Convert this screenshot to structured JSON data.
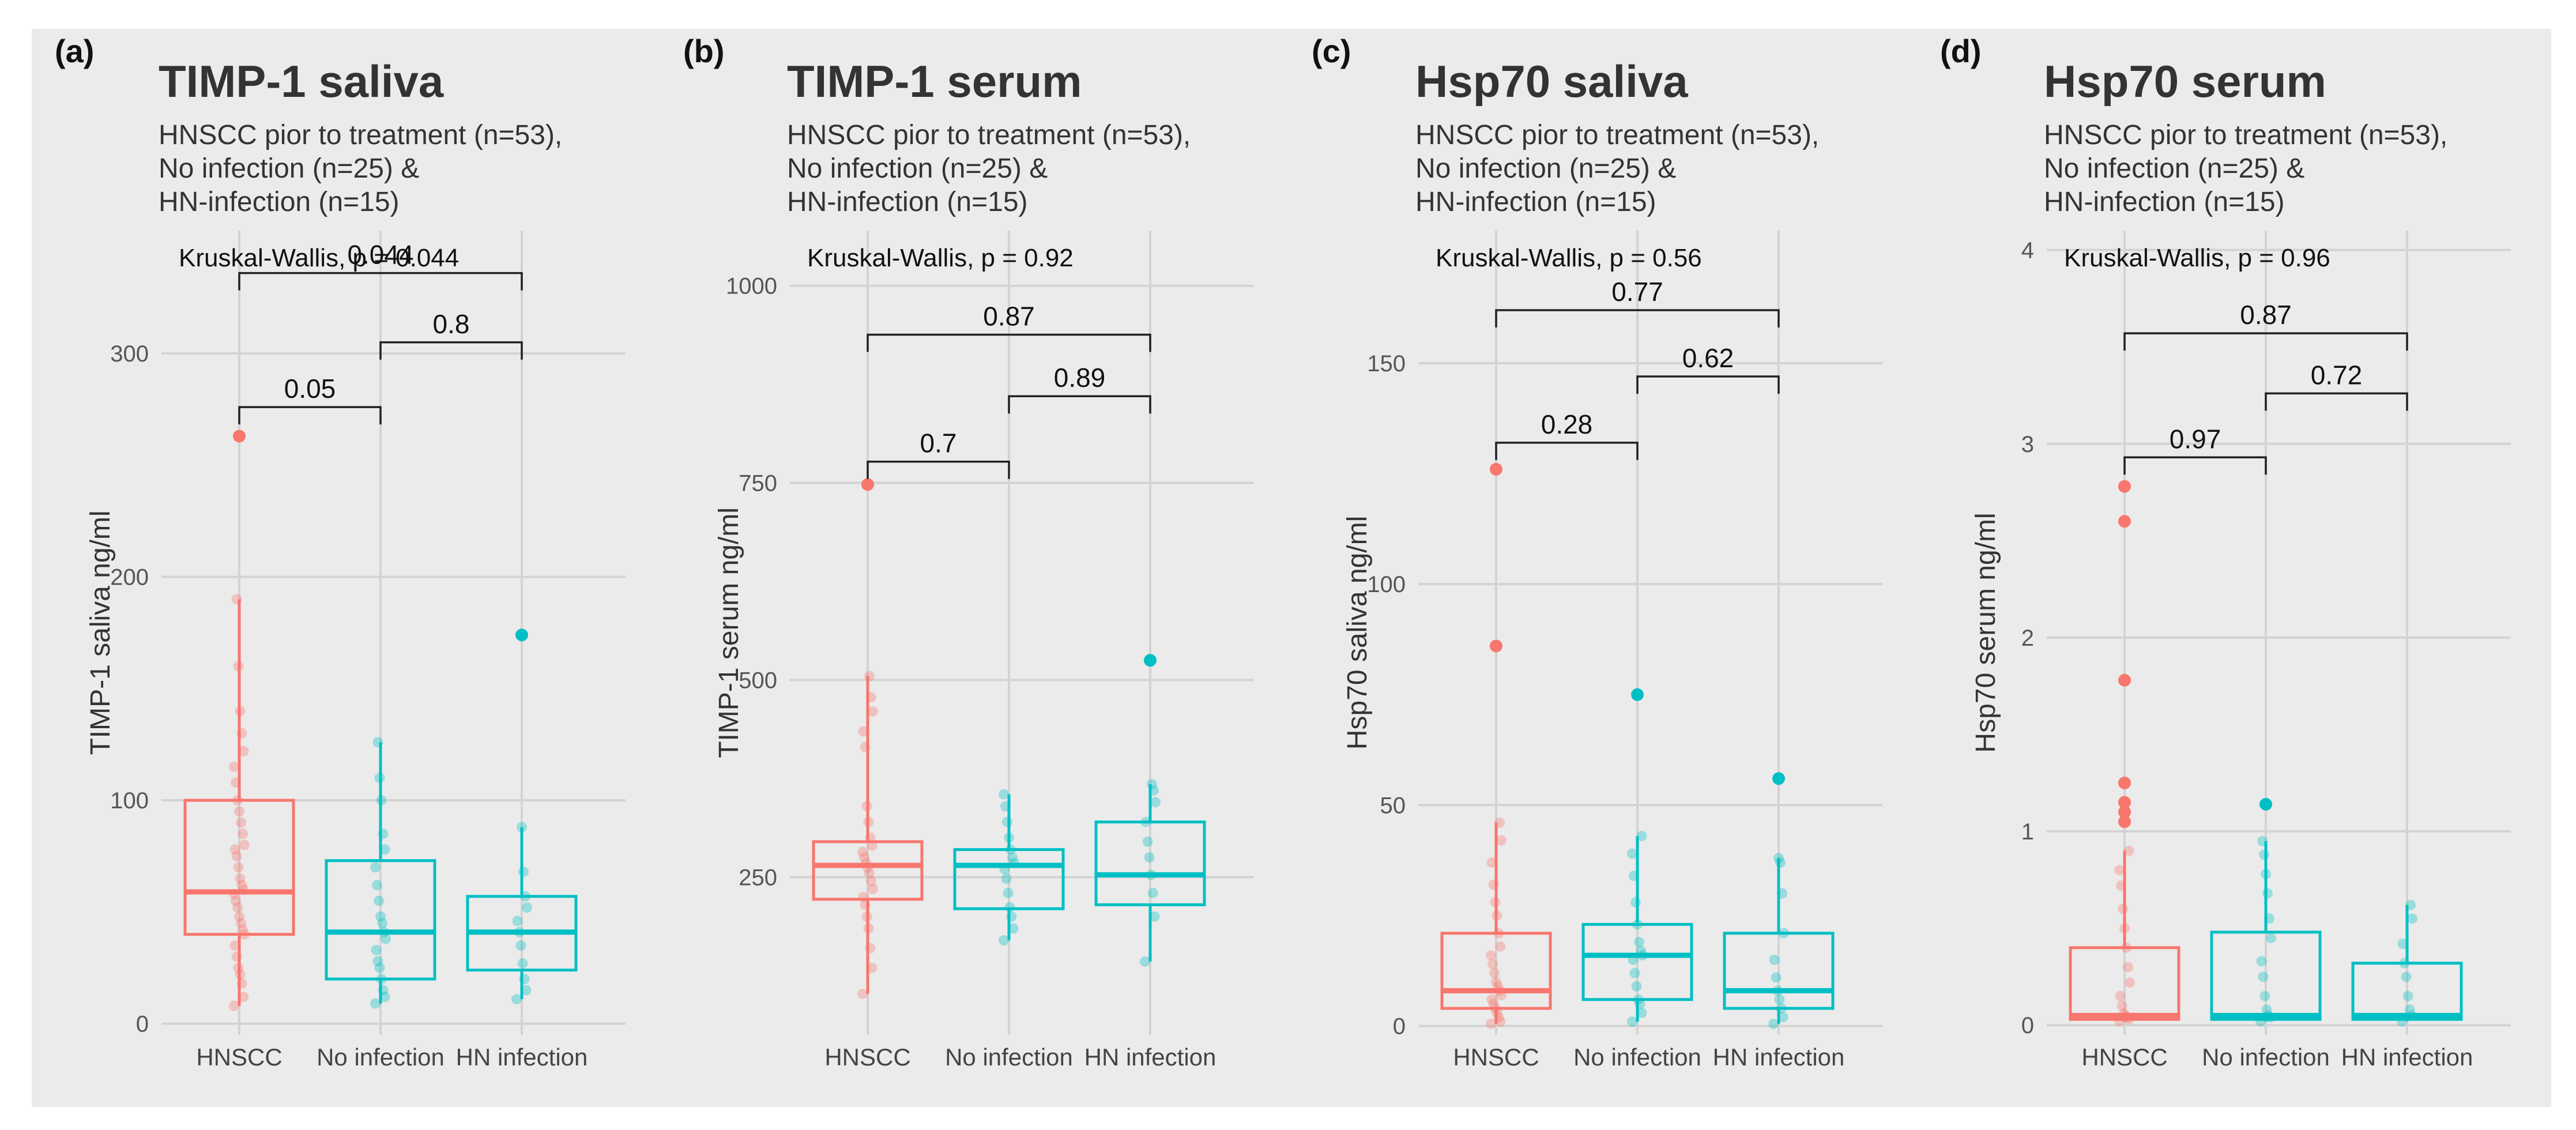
{
  "figure": {
    "palette": {
      "hnscc": "#F8766D",
      "control": "#00BFC4",
      "panel_bg": "#EBEBEB",
      "grid": "#D3D3D3"
    }
  },
  "chart_data": [
    {
      "type": "box",
      "panel_label": "(a)",
      "title": "TIMP-1 saliva",
      "subtitle_lines": [
        "HNSCC pior to treatment (n=53),",
        "No infection (n=25) &",
        "HN-infection (n=15)"
      ],
      "kruskal": "Kruskal-Wallis, p = 0.044",
      "ylabel": "TIMP-1 saliva ng/ml",
      "ylim": [
        -5,
        355
      ],
      "yticks": [
        0,
        100,
        200,
        300
      ],
      "categories": [
        "HNSCC",
        "No infection",
        "HN infection"
      ],
      "series": [
        {
          "name": "HNSCC",
          "color": "#F8766D",
          "q1": 40,
          "median": 59,
          "q3": 100,
          "whisker_low": 8,
          "whisker_high": 190,
          "outliers": [
            263
          ],
          "points": [
            8,
            12,
            18,
            22,
            25,
            30,
            35,
            40,
            42,
            45,
            48,
            52,
            55,
            58,
            60,
            62,
            65,
            70,
            75,
            78,
            80,
            85,
            90,
            95,
            100,
            108,
            115,
            122,
            130,
            140,
            160,
            190
          ]
        },
        {
          "name": "No infection",
          "color": "#00BFC4",
          "q1": 20,
          "median": 41,
          "q3": 73,
          "whisker_low": 9,
          "whisker_high": 126,
          "outliers": [],
          "points": [
            9,
            12,
            15,
            20,
            25,
            28,
            33,
            38,
            41,
            45,
            48,
            55,
            62,
            70,
            78,
            85,
            100,
            110,
            126
          ]
        },
        {
          "name": "HN infection",
          "color": "#00BFC4",
          "q1": 24,
          "median": 41,
          "q3": 57,
          "whisker_low": 11,
          "whisker_high": 88,
          "outliers": [
            174
          ],
          "points": [
            11,
            15,
            20,
            27,
            35,
            41,
            46,
            52,
            57,
            68,
            88
          ]
        }
      ],
      "comparisons": [
        {
          "from": 0,
          "to": 1,
          "label": "0.05",
          "y": 276
        },
        {
          "from": 1,
          "to": 2,
          "label": "0.8",
          "y": 305
        },
        {
          "from": 0,
          "to": 2,
          "label": "0.044",
          "y": 336
        }
      ]
    },
    {
      "type": "box",
      "panel_label": "(b)",
      "title": "TIMP-1 serum",
      "subtitle_lines": [
        "HNSCC pior to treatment (n=53),",
        "No infection (n=25) &",
        "HN-infection (n=15)"
      ],
      "kruskal": "Kruskal-Wallis, p = 0.92",
      "ylabel": "TIMP-1 serum ng/ml",
      "ylim": [
        50,
        1070
      ],
      "yticks": [
        250,
        500,
        750,
        1000
      ],
      "categories": [
        "HNSCC",
        "No infection",
        "HN infection"
      ],
      "series": [
        {
          "name": "HNSCC",
          "color": "#F8766D",
          "q1": 222,
          "median": 265,
          "q3": 295,
          "whisker_low": 102,
          "whisker_high": 505,
          "outliers": [
            748
          ],
          "points": [
            102,
            135,
            160,
            185,
            200,
            215,
            225,
            235,
            245,
            255,
            262,
            268,
            275,
            282,
            290,
            300,
            320,
            340,
            415,
            435,
            460,
            478,
            505
          ]
        },
        {
          "name": "No infection",
          "color": "#00BFC4",
          "q1": 210,
          "median": 265,
          "q3": 285,
          "whisker_low": 170,
          "whisker_high": 355,
          "outliers": [],
          "points": [
            170,
            185,
            200,
            212,
            230,
            248,
            260,
            268,
            275,
            285,
            300,
            320,
            340,
            355
          ]
        },
        {
          "name": "HN infection",
          "color": "#00BFC4",
          "q1": 215,
          "median": 253,
          "q3": 320,
          "whisker_low": 143,
          "whisker_high": 368,
          "outliers": [
            525
          ],
          "points": [
            143,
            200,
            230,
            253,
            275,
            295,
            320,
            345,
            360,
            368
          ]
        }
      ],
      "comparisons": [
        {
          "from": 0,
          "to": 1,
          "label": "0.7",
          "y": 777
        },
        {
          "from": 1,
          "to": 2,
          "label": "0.89",
          "y": 860
        },
        {
          "from": 0,
          "to": 2,
          "label": "0.87",
          "y": 938
        }
      ]
    },
    {
      "type": "box",
      "panel_label": "(c)",
      "title": "Hsp70 saliva",
      "subtitle_lines": [
        "HNSCC pior to treatment (n=53),",
        "No infection (n=25) &",
        "HN-infection (n=15)"
      ],
      "kruskal": "Kruskal-Wallis, p = 0.56",
      "ylabel": "Hsp70 saliva ng/ml",
      "ylim": [
        -2,
        180
      ],
      "yticks": [
        0,
        50,
        100,
        150
      ],
      "categories": [
        "HNSCC",
        "No infection",
        "HN infection"
      ],
      "series": [
        {
          "name": "HNSCC",
          "color": "#F8766D",
          "q1": 4,
          "median": 8,
          "q3": 21,
          "whisker_low": 0.5,
          "whisker_high": 46,
          "outliers": [
            86,
            126
          ],
          "points": [
            0.5,
            1,
            2,
            3,
            4,
            5,
            6,
            7,
            8,
            9,
            10,
            12,
            14,
            16,
            18,
            21,
            25,
            28,
            32,
            37,
            42,
            46
          ]
        },
        {
          "name": "No infection",
          "color": "#00BFC4",
          "q1": 6,
          "median": 16,
          "q3": 23,
          "whisker_low": 1,
          "whisker_high": 43,
          "outliers": [
            75
          ],
          "points": [
            1,
            3,
            5,
            6,
            9,
            12,
            15,
            16,
            17,
            19,
            23,
            28,
            34,
            39,
            43
          ]
        },
        {
          "name": "HN infection",
          "color": "#00BFC4",
          "q1": 4,
          "median": 8,
          "q3": 21,
          "whisker_low": 0.5,
          "whisker_high": 38,
          "outliers": [
            56
          ],
          "points": [
            0.5,
            2,
            4,
            6,
            8,
            11,
            15,
            21,
            30,
            37,
            38
          ]
        }
      ],
      "comparisons": [
        {
          "from": 0,
          "to": 1,
          "label": "0.28",
          "y": 132
        },
        {
          "from": 1,
          "to": 2,
          "label": "0.62",
          "y": 147
        },
        {
          "from": 0,
          "to": 2,
          "label": "0.77",
          "y": 162
        }
      ]
    },
    {
      "type": "box",
      "panel_label": "(d)",
      "title": "Hsp70 serum",
      "subtitle_lines": [
        "HNSCC pior to treatment (n=53),",
        "No infection (n=25) &",
        "HN-infection (n=15)"
      ],
      "kruskal": "Kruskal-Wallis, p = 0.96",
      "ylabel": "Hsp70 serum ng/ml",
      "ylim": [
        -0.05,
        4.1
      ],
      "yticks": [
        0,
        1,
        2,
        3,
        4
      ],
      "categories": [
        "HNSCC",
        "No infection",
        "HN infection"
      ],
      "series": [
        {
          "name": "HNSCC",
          "color": "#F8766D",
          "q1": 0.03,
          "median": 0.05,
          "q3": 0.4,
          "whisker_low": 0.02,
          "whisker_high": 0.9,
          "outliers": [
            1.05,
            1.1,
            1.15,
            1.25,
            1.78,
            2.6,
            2.78
          ],
          "points": [
            0.02,
            0.03,
            0.04,
            0.05,
            0.06,
            0.1,
            0.15,
            0.22,
            0.3,
            0.4,
            0.5,
            0.6,
            0.72,
            0.8,
            0.9
          ]
        },
        {
          "name": "No infection",
          "color": "#00BFC4",
          "q1": 0.03,
          "median": 0.05,
          "q3": 0.48,
          "whisker_low": 0.02,
          "whisker_high": 0.95,
          "outliers": [
            1.14
          ],
          "points": [
            0.02,
            0.04,
            0.05,
            0.08,
            0.15,
            0.25,
            0.33,
            0.45,
            0.55,
            0.68,
            0.78,
            0.88,
            0.95
          ]
        },
        {
          "name": "HN infection",
          "color": "#00BFC4",
          "q1": 0.03,
          "median": 0.05,
          "q3": 0.32,
          "whisker_low": 0.02,
          "whisker_high": 0.62,
          "outliers": [],
          "points": [
            0.02,
            0.05,
            0.08,
            0.15,
            0.25,
            0.32,
            0.42,
            0.55,
            0.62
          ]
        }
      ],
      "comparisons": [
        {
          "from": 0,
          "to": 1,
          "label": "0.97",
          "y": 2.93
        },
        {
          "from": 1,
          "to": 2,
          "label": "0.72",
          "y": 3.26
        },
        {
          "from": 0,
          "to": 2,
          "label": "0.87",
          "y": 3.57
        }
      ]
    }
  ]
}
